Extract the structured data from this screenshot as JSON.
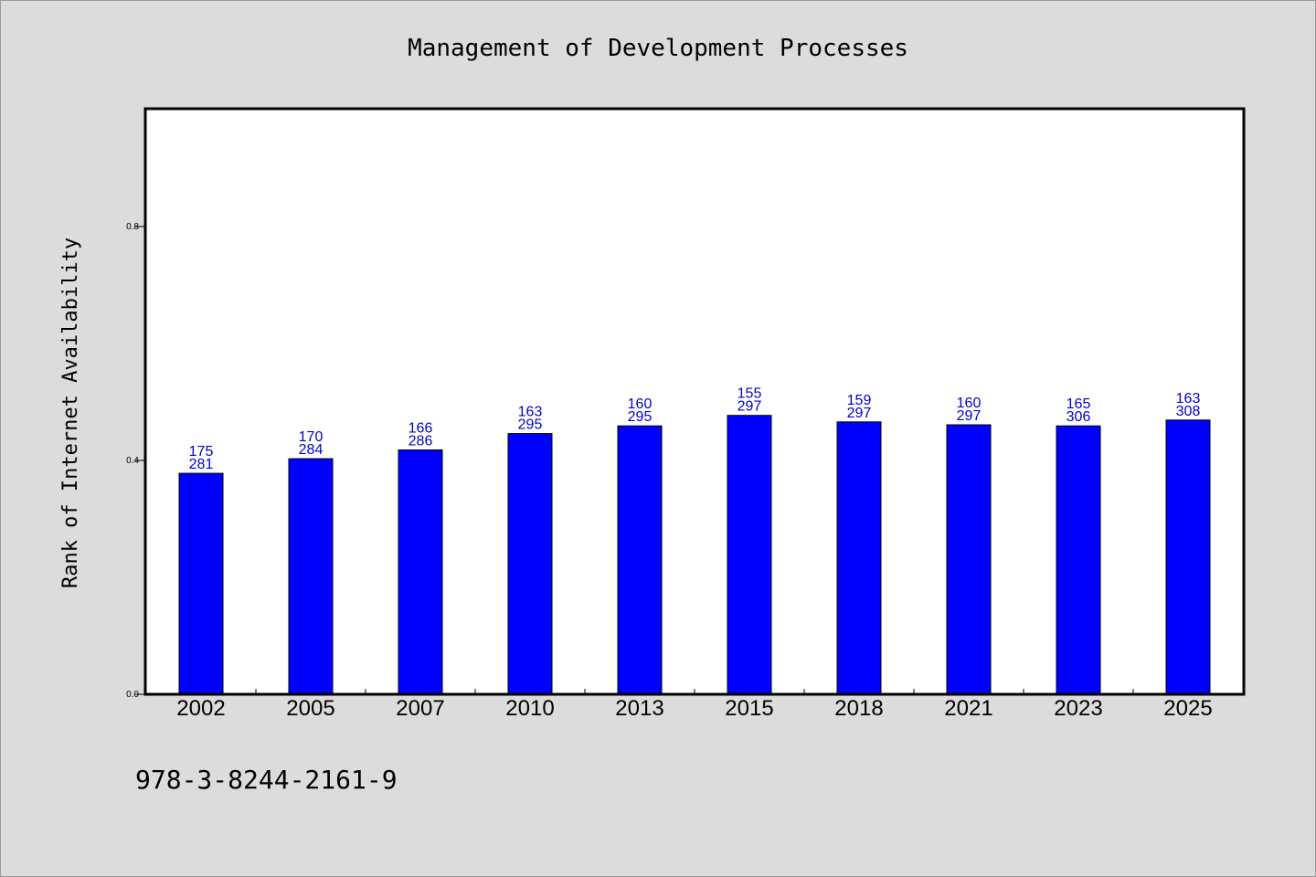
{
  "chart_data": {
    "type": "bar",
    "title": "Management of Development Processes",
    "xlabel": "",
    "ylabel": "Rank of Internet Availability",
    "categories": [
      "2002",
      "2005",
      "2007",
      "2010",
      "2013",
      "2015",
      "2018",
      "2021",
      "2023",
      "2025"
    ],
    "values": [
      0.378,
      0.403,
      0.418,
      0.446,
      0.459,
      0.477,
      0.466,
      0.461,
      0.459,
      0.469
    ],
    "labels_top": [
      "175",
      "170",
      "166",
      "163",
      "160",
      "155",
      "159",
      "160",
      "165",
      "163"
    ],
    "labels_bottom": [
      "281",
      "284",
      "286",
      "295",
      "295",
      "297",
      "297",
      "297",
      "306",
      "308"
    ],
    "ylim": [
      0,
      1.0
    ],
    "yticks": [
      0.0,
      0.4,
      0.8
    ],
    "ytick_labels": [
      "0.0",
      "0.4",
      "0.8"
    ],
    "grid": false,
    "bar_color": "#0000ff",
    "label_color": "#0000cc",
    "background": "#dcdcdc"
  },
  "footer": {
    "isbn": "978-3-8244-2161-9"
  }
}
